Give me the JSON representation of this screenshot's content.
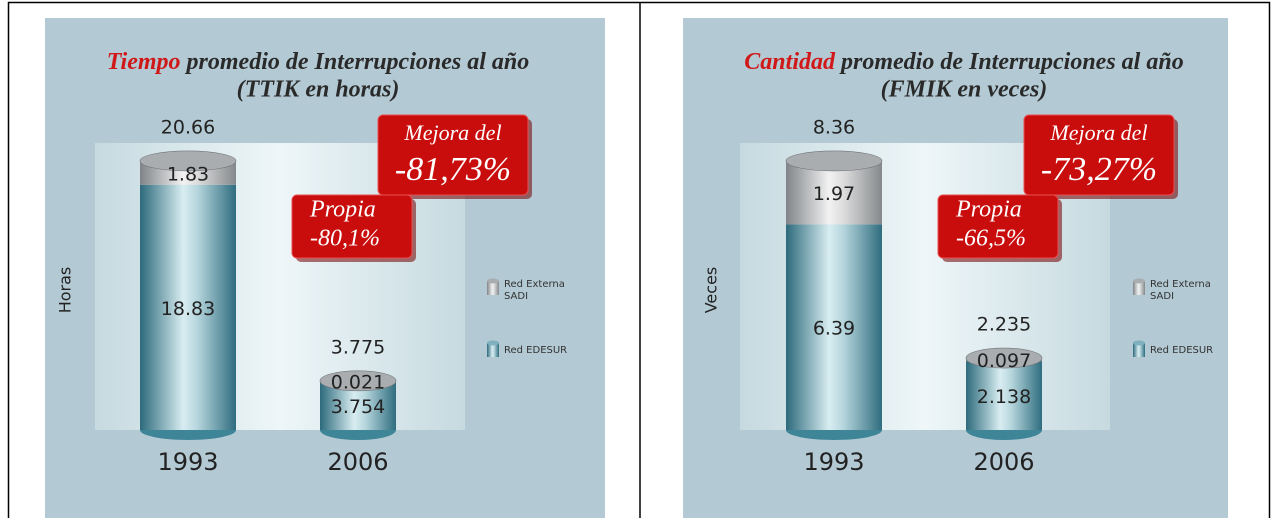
{
  "chart_data": [
    {
      "type": "bar",
      "stacked": true,
      "title_highlight": "Tiempo",
      "title": "promedio de Interrupciones al año",
      "subtitle": "(TTIK en horas)",
      "y_label": "Horas",
      "categories": [
        "1993",
        "2006"
      ],
      "series": [
        {
          "name": "Red EDESUR",
          "color": "#3f8598",
          "values": [
            18.83,
            3.754
          ]
        },
        {
          "name": "Red Externa SADI",
          "name_lines": [
            "Red Externa",
            "SADI"
          ],
          "color": "#9a9ea2",
          "values": [
            1.83,
            0.021
          ]
        }
      ],
      "totals": [
        20.66,
        3.775
      ],
      "ylim": [
        0,
        21.5
      ],
      "annotations": [
        {
          "lines": [
            "Mejora del",
            "-81,73%"
          ]
        },
        {
          "lines": [
            "Propia",
            "-80,1%"
          ]
        }
      ]
    },
    {
      "type": "bar",
      "stacked": true,
      "title_highlight": "Cantidad",
      "title": "promedio de Interrupciones al año",
      "subtitle": "(FMIK en veces)",
      "y_label": "Veces",
      "categories": [
        "1993",
        "2006"
      ],
      "series": [
        {
          "name": "Red EDESUR",
          "color": "#3f8598",
          "values": [
            6.39,
            2.138
          ]
        },
        {
          "name": "Red Externa SADI",
          "name_lines": [
            "Red Externa",
            "SADI"
          ],
          "color": "#9a9ea2",
          "values": [
            1.97,
            0.097
          ]
        }
      ],
      "totals": [
        8.36,
        2.235
      ],
      "ylim": [
        0,
        8.7
      ],
      "annotations": [
        {
          "lines": [
            "Mejora del",
            "-73,27%"
          ]
        },
        {
          "lines": [
            "Propia",
            "-66,5%"
          ]
        }
      ]
    }
  ]
}
